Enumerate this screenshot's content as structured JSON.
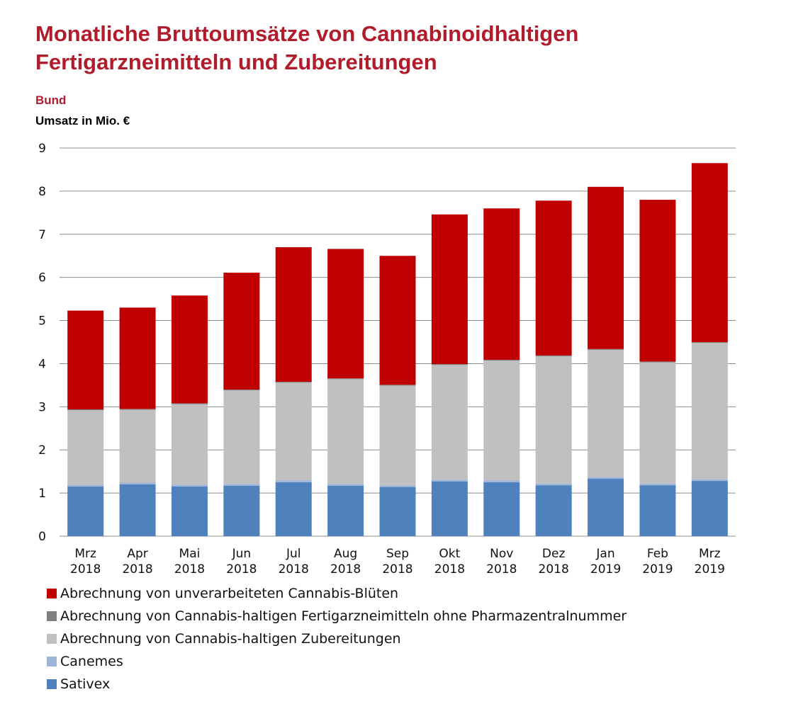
{
  "chart_data": {
    "type": "bar",
    "stacked": true,
    "title": "Monatliche Bruttoumsätze von Cannabinoidhaltigen Fertigarzneimitteln und Zubereitungen",
    "subtitle": "Bund",
    "ylabel": "Umsatz in Mio. €",
    "ylim": [
      0,
      9
    ],
    "yticks": [
      "0",
      "1",
      "2",
      "3",
      "4",
      "5",
      "6",
      "7",
      "8",
      "9"
    ],
    "grid": true,
    "legend_position": "bottom",
    "categories": [
      [
        "Mrz",
        "2018"
      ],
      [
        "Apr",
        "2018"
      ],
      [
        "Mai",
        "2018"
      ],
      [
        "Jun",
        "2018"
      ],
      [
        "Jul",
        "2018"
      ],
      [
        "Aug",
        "2018"
      ],
      [
        "Sep",
        "2018"
      ],
      [
        "Okt",
        "2018"
      ],
      [
        "Nov",
        "2018"
      ],
      [
        "Dez",
        "2018"
      ],
      [
        "Jan",
        "2019"
      ],
      [
        "Feb",
        "2019"
      ],
      [
        "Mrz",
        "2019"
      ]
    ],
    "series": [
      {
        "name": "Sativex",
        "color": "#4f81bd",
        "values": [
          1.15,
          1.2,
          1.15,
          1.17,
          1.25,
          1.17,
          1.14,
          1.27,
          1.25,
          1.18,
          1.33,
          1.18,
          1.28
        ]
      },
      {
        "name": "Canemes",
        "color": "#9cb5d9",
        "values": [
          0.04,
          0.04,
          0.04,
          0.04,
          0.04,
          0.04,
          0.04,
          0.04,
          0.04,
          0.04,
          0.04,
          0.04,
          0.04
        ]
      },
      {
        "name": "Abrechnung von Cannabis-haltigen Zubereitungen",
        "color": "#c0c0c0",
        "values": [
          1.73,
          1.69,
          1.87,
          2.17,
          2.27,
          2.43,
          2.31,
          2.66,
          2.78,
          2.95,
          2.95,
          2.81,
          3.16
        ]
      },
      {
        "name": "Abrechnung von Cannabis-haltigen Fertigarzneimitteln ohne Pharmazentralnummer",
        "color": "#808080",
        "values": [
          0.02,
          0.02,
          0.02,
          0.02,
          0.02,
          0.02,
          0.02,
          0.02,
          0.02,
          0.02,
          0.02,
          0.02,
          0.02
        ]
      },
      {
        "name": "Abrechnung von unverarbeiteten Cannabis-Blüten",
        "color": "#c00000",
        "values": [
          2.29,
          2.35,
          2.5,
          2.71,
          3.12,
          3.0,
          2.99,
          3.47,
          3.51,
          3.59,
          3.76,
          3.75,
          4.15
        ]
      }
    ],
    "legend_order": [
      4,
      3,
      2,
      1,
      0
    ]
  }
}
